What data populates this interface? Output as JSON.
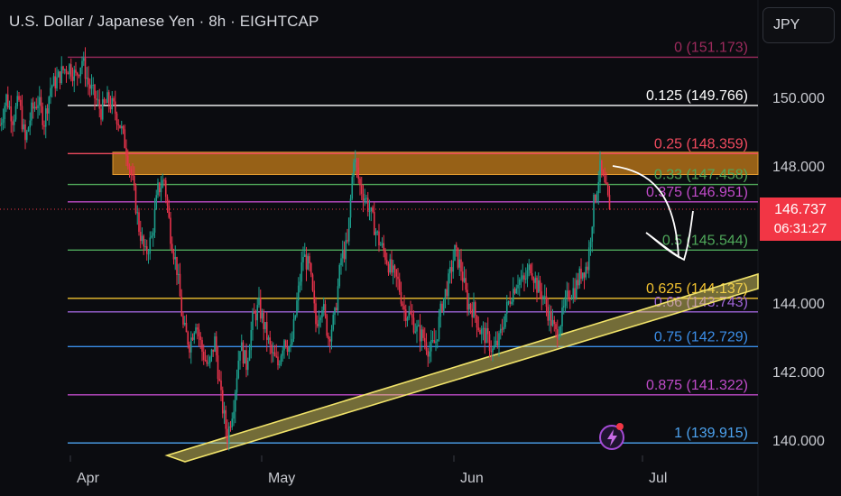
{
  "header": {
    "title": "U.S. Dollar / Japanese Yen · 8h · EIGHTCAP",
    "currency": "JPY"
  },
  "price_badge": {
    "price": "146.737",
    "countdown": "06:31:27",
    "color": "#f23645"
  },
  "colors": {
    "background": "#0b0c10",
    "up": "#1c9e8c",
    "down": "#e8334b",
    "axis_text": "#c7c9cf",
    "zone": "#c77d1a",
    "channel": "#f1e36a"
  },
  "chart_data": {
    "type": "candlestick",
    "y_axis": {
      "ticks": [
        140,
        142,
        144,
        146,
        148,
        150
      ],
      "tick_labels": [
        "140.000",
        "142.000",
        "144.000",
        "",
        "148.000",
        "150.000"
      ],
      "range": [
        139.7,
        153.0
      ],
      "side": "right"
    },
    "x_axis": {
      "tick_labels": [
        "Apr",
        "May",
        "Jun",
        "Jul"
      ]
    },
    "fibonacci": [
      {
        "ratio": "0",
        "price": 151.173,
        "label": "0 (151.173)",
        "color": "#9c2a5c"
      },
      {
        "ratio": "0.125",
        "price": 149.766,
        "label": "0.125 (149.766)",
        "color": "#ffffff"
      },
      {
        "ratio": "0.25",
        "price": 148.359,
        "label": "0.25 (148.359)",
        "color": "#f04a5e"
      },
      {
        "ratio": "0.33",
        "price": 147.458,
        "label": "0.33 (147.458)",
        "color": "#4fa85a"
      },
      {
        "ratio": "0.375",
        "price": 146.951,
        "label": "0.375 (146.951)",
        "color": "#c04bc9"
      },
      {
        "ratio": "0.5",
        "price": 145.544,
        "label": "0.5 (145.544)",
        "color": "#4fa85a"
      },
      {
        "ratio": "0.625",
        "price": 144.137,
        "label": "0.625 (144.137)",
        "color": "#f2c230"
      },
      {
        "ratio": "0.66",
        "price": 143.743,
        "label": "0.66 (143.743)",
        "color": "#9d63d6"
      },
      {
        "ratio": "0.75",
        "price": 142.729,
        "label": "0.75 (142.729)",
        "color": "#3b8ee8"
      },
      {
        "ratio": "0.875",
        "price": 141.322,
        "label": "0.875 (141.322)",
        "color": "#c04bc9"
      },
      {
        "ratio": "1",
        "price": 139.915,
        "label": "1 (139.915)",
        "color": "#4da3f0"
      }
    ],
    "resistance_zone": {
      "top": 148.4,
      "bottom": 147.75
    },
    "last_price": 146.737,
    "series_path": [
      [
        0,
        149.2
      ],
      [
        4,
        150.0
      ],
      [
        8,
        149.4
      ],
      [
        12,
        149.9
      ],
      [
        16,
        148.7
      ],
      [
        20,
        149.6
      ],
      [
        24,
        149.9
      ],
      [
        28,
        149.3
      ],
      [
        32,
        150.3
      ],
      [
        36,
        150.5
      ],
      [
        40,
        150.8
      ],
      [
        44,
        150.9
      ],
      [
        48,
        150.6
      ],
      [
        52,
        151.1
      ],
      [
        56,
        150.4
      ],
      [
        60,
        150.0
      ],
      [
        64,
        149.6
      ],
      [
        68,
        149.9
      ],
      [
        72,
        149.7
      ],
      [
        76,
        149.2
      ],
      [
        80,
        148.5
      ],
      [
        84,
        147.5
      ],
      [
        88,
        146.2
      ],
      [
        92,
        145.4
      ],
      [
        96,
        145.9
      ],
      [
        100,
        147.3
      ],
      [
        104,
        147.6
      ],
      [
        108,
        146.0
      ],
      [
        112,
        145.0
      ],
      [
        116,
        143.3
      ],
      [
        120,
        142.8
      ],
      [
        124,
        143.5
      ],
      [
        128,
        142.6
      ],
      [
        132,
        142.1
      ],
      [
        136,
        142.9
      ],
      [
        140,
        141.2
      ],
      [
        144,
        140.1
      ],
      [
        148,
        141.1
      ],
      [
        152,
        142.8
      ],
      [
        156,
        142.2
      ],
      [
        160,
        143.5
      ],
      [
        164,
        143.9
      ],
      [
        168,
        143.2
      ],
      [
        172,
        142.5
      ],
      [
        176,
        142.2
      ],
      [
        180,
        143.0
      ],
      [
        184,
        142.6
      ],
      [
        188,
        144.0
      ],
      [
        192,
        145.4
      ],
      [
        196,
        145.0
      ],
      [
        200,
        143.4
      ],
      [
        204,
        144.0
      ],
      [
        208,
        143.0
      ],
      [
        212,
        143.6
      ],
      [
        216,
        145.3
      ],
      [
        220,
        145.7
      ],
      [
        224,
        148.3
      ],
      [
        228,
        147.4
      ],
      [
        232,
        147.0
      ],
      [
        236,
        146.4
      ],
      [
        240,
        145.8
      ],
      [
        244,
        145.4
      ],
      [
        248,
        144.9
      ],
      [
        252,
        144.6
      ],
      [
        256,
        143.8
      ],
      [
        260,
        143.6
      ],
      [
        264,
        143.2
      ],
      [
        268,
        143.0
      ],
      [
        272,
        142.6
      ],
      [
        276,
        142.9
      ],
      [
        280,
        144.0
      ],
      [
        284,
        144.6
      ],
      [
        288,
        145.5
      ],
      [
        292,
        145.0
      ],
      [
        296,
        144.0
      ],
      [
        300,
        143.8
      ],
      [
        304,
        143.2
      ],
      [
        308,
        143.0
      ],
      [
        312,
        142.6
      ],
      [
        316,
        142.9
      ],
      [
        320,
        143.7
      ],
      [
        324,
        144.3
      ],
      [
        328,
        144.7
      ],
      [
        332,
        144.6
      ],
      [
        336,
        145.1
      ],
      [
        340,
        144.5
      ],
      [
        344,
        144.2
      ],
      [
        348,
        143.6
      ],
      [
        352,
        143.1
      ],
      [
        356,
        143.6
      ],
      [
        360,
        144.3
      ],
      [
        364,
        144.4
      ],
      [
        368,
        144.9
      ],
      [
        372,
        145.1
      ],
      [
        376,
        146.9
      ],
      [
        380,
        147.9
      ],
      [
        384,
        147.2
      ],
      [
        386,
        146.74
      ]
    ],
    "projection": {
      "from": [
        386,
        147.4
      ],
      "to": [
        398,
        145.2
      ]
    }
  }
}
